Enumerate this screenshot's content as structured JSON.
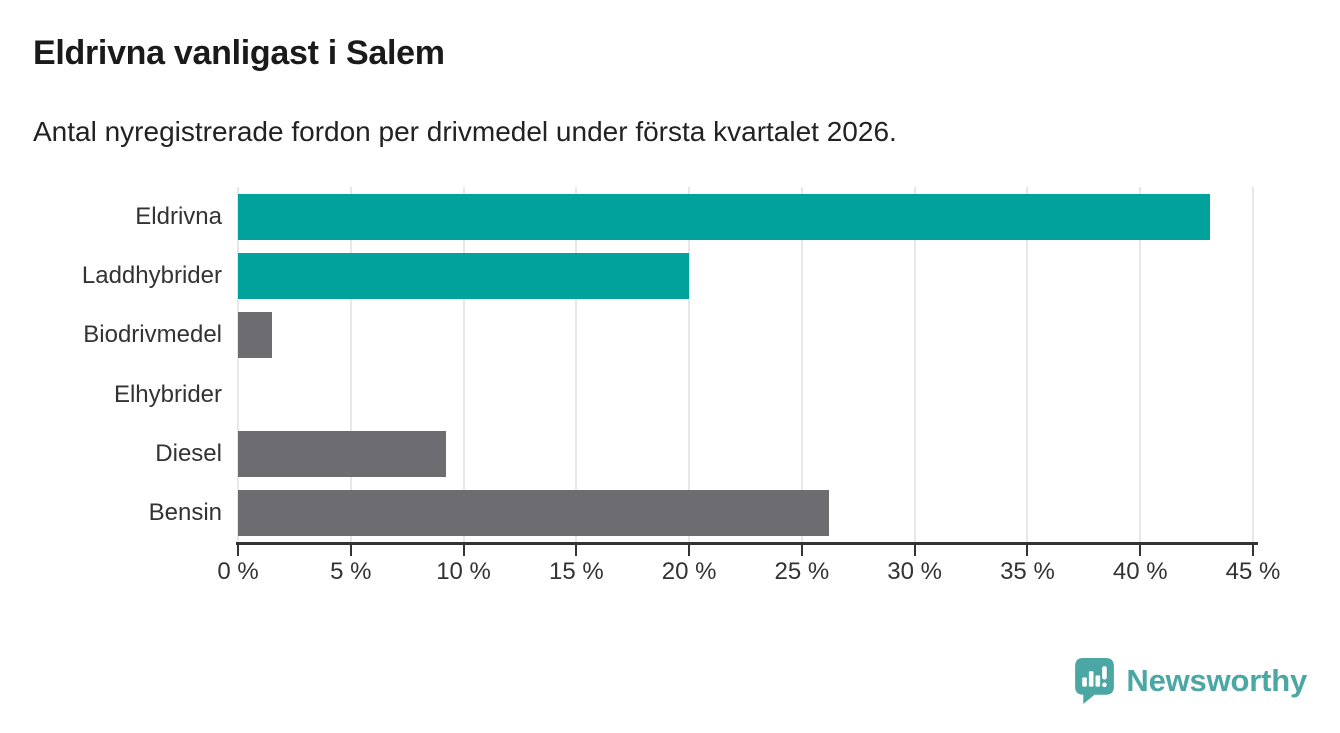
{
  "title": "Eldrivna vanligast i Salem",
  "subtitle": "Antal nyregistrerade fordon per drivmedel under första kvartalet 2026.",
  "chart_data": {
    "type": "bar",
    "orientation": "horizontal",
    "title": "Eldrivna vanligast i Salem",
    "subtitle": "Antal nyregistrerade fordon per drivmedel under första kvartalet 2026.",
    "categories": [
      "Eldrivna",
      "Laddhybrider",
      "Biodrivmedel",
      "Elhybrider",
      "Diesel",
      "Bensin"
    ],
    "values": [
      43.1,
      20,
      1.5,
      0,
      9.2,
      26.2
    ],
    "bar_colors": [
      "#00a29b",
      "#00a29b",
      "#6d6c71",
      "#6d6c71",
      "#6d6c71",
      "#6d6c71"
    ],
    "xlim": [
      0,
      45
    ],
    "x_ticks": [
      0,
      5,
      10,
      15,
      20,
      25,
      30,
      35,
      40,
      45
    ],
    "x_tick_labels": [
      "0 %",
      "5 %",
      "10 %",
      "15 %",
      "20 %",
      "25 %",
      "30 %",
      "35 %",
      "40 %",
      "45 %"
    ],
    "xlabel": "",
    "ylabel": "",
    "grid": "vertical",
    "legend": false
  },
  "colors": {
    "bar_teal": "#00a29b",
    "bar_gray": "#6d6c71",
    "axis_line": "#333333",
    "tick_text": "#333333",
    "label_text": "#333333",
    "title_text": "#1a1a1a",
    "subtitle_text": "#222222",
    "gridline": "#e7e7e7",
    "background": "#ffffff",
    "logo_teal": "#4ba7a3"
  },
  "branding": {
    "logo_text": "Newsworthy",
    "logo_icon": "bar-chart-speech-bubble-icon"
  }
}
